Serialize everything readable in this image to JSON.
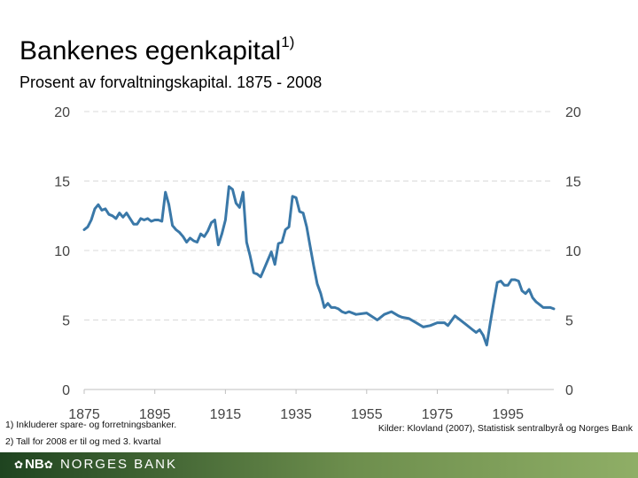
{
  "title": "Bankenes egenkapital",
  "title_sup": "1)",
  "subtitle": "Prosent av forvaltningskapital. 1875 - 2008",
  "notes": [
    "1)  Inkluderer spare- og forretningsbanker.",
    "2)  Tall for 2008 er til og med 3. kvartal"
  ],
  "source": "Kilder: Klovland (2007), Statistisk sentralbyrå og Norges Bank",
  "logo": {
    "mark": "NB",
    "name": "NORGES BANK"
  },
  "colors": {
    "line": "#3a78a8",
    "grid": "#d9d9d9",
    "footer_dark": "#1f4420",
    "footer_light": "#8fae66"
  },
  "chart_data": {
    "type": "line",
    "title": "Bankenes egenkapital",
    "subtitle": "Prosent av forvaltningskapital. 1875 - 2008",
    "xlim": [
      1875,
      2008
    ],
    "ylim": [
      0,
      20
    ],
    "x_ticks": [
      1875,
      1895,
      1915,
      1935,
      1955,
      1975,
      1995
    ],
    "y_ticks": [
      0,
      5,
      10,
      15,
      20
    ],
    "y_axis_right": true,
    "grid": "horizontal dashed",
    "series": [
      {
        "x": [
          1875,
          1876,
          1877,
          1878,
          1879,
          1880,
          1881,
          1882,
          1883,
          1884,
          1885,
          1886,
          1887,
          1888,
          1889,
          1890,
          1891,
          1892,
          1893,
          1894,
          1895,
          1896,
          1897,
          1898,
          1899,
          1900,
          1901,
          1902,
          1903,
          1904,
          1905,
          1906,
          1907,
          1908,
          1909,
          1910,
          1911,
          1912,
          1913,
          1914,
          1915,
          1916,
          1917,
          1918,
          1919,
          1920,
          1921,
          1922,
          1923,
          1924,
          1925,
          1926,
          1927,
          1928,
          1929,
          1930,
          1931,
          1932,
          1933,
          1934,
          1935,
          1936,
          1937,
          1938,
          1939,
          1940,
          1941,
          1942,
          1943,
          1944,
          1945,
          1946,
          1947,
          1948,
          1949,
          1950,
          1952,
          1955,
          1958,
          1960,
          1962,
          1964,
          1965,
          1967,
          1969,
          1971,
          1973,
          1975,
          1977,
          1978,
          1980,
          1982,
          1983,
          1985,
          1986,
          1987,
          1988,
          1989,
          1990,
          1991,
          1992,
          1993,
          1994,
          1995,
          1996,
          1997,
          1998,
          1999,
          2000,
          2001,
          2002,
          2003,
          2004,
          2005,
          2006,
          2007,
          2008
        ],
        "y": [
          11.5,
          11.7,
          12.2,
          13.0,
          13.3,
          12.9,
          13.0,
          12.6,
          12.5,
          12.3,
          12.7,
          12.4,
          12.7,
          12.3,
          11.9,
          11.9,
          12.3,
          12.2,
          12.3,
          12.1,
          12.2,
          12.2,
          12.1,
          14.2,
          13.3,
          11.8,
          11.5,
          11.3,
          11.0,
          10.6,
          10.9,
          10.7,
          10.6,
          11.2,
          11.0,
          11.4,
          12.0,
          12.2,
          10.4,
          11.2,
          12.2,
          14.6,
          14.4,
          13.4,
          13.1,
          14.2,
          10.6,
          9.6,
          8.4,
          8.3,
          8.1,
          8.7,
          9.3,
          9.9,
          9.0,
          10.5,
          10.6,
          11.5,
          11.7,
          13.9,
          13.8,
          12.8,
          12.7,
          11.7,
          10.3,
          8.9,
          7.6,
          6.9,
          5.9,
          6.2,
          5.9,
          5.9,
          5.8,
          5.6,
          5.5,
          5.6,
          5.4,
          5.5,
          5.0,
          5.4,
          5.6,
          5.3,
          5.2,
          5.1,
          4.8,
          4.5,
          4.6,
          4.8,
          4.8,
          4.6,
          5.3,
          4.9,
          4.7,
          4.3,
          4.1,
          4.3,
          3.9,
          3.2,
          4.8,
          6.3,
          7.7,
          7.8,
          7.5,
          7.5,
          7.9,
          7.9,
          7.8,
          7.1,
          6.9,
          7.2,
          6.6,
          6.3,
          6.1,
          5.9,
          5.9,
          5.9,
          5.8
        ]
      }
    ]
  }
}
